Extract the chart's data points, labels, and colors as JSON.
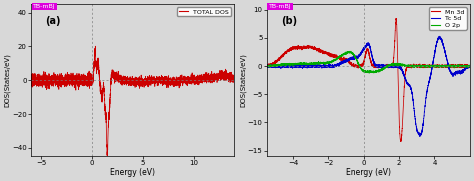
{
  "panel_a": {
    "label": "(a)",
    "tag": "TB-mBJ",
    "tag_color": "#dd00dd",
    "legend_label": "TOTAL DOS",
    "legend_color": "#cc0000",
    "xlabel": "Energy (eV)",
    "ylabel": "DOS(States/eV)",
    "xlim": [
      -6,
      14
    ],
    "ylim": [
      -45,
      45
    ],
    "yticks": [
      -40,
      -20,
      0,
      20,
      40
    ],
    "xticks": [
      -5,
      0,
      5,
      10
    ]
  },
  "panel_b": {
    "label": "(b)",
    "tag": "TB-mBJ",
    "tag_color": "#dd00dd",
    "legend": [
      {
        "label": "Mn 3d",
        "color": "#cc0000"
      },
      {
        "label": "Tc 5d",
        "color": "#0000cc"
      },
      {
        "label": "O 2p",
        "color": "#00aa00"
      }
    ],
    "xlabel": "Energy (eV)",
    "ylabel": "DOS(States/eV)",
    "xlim": [
      -5.5,
      6
    ],
    "ylim": [
      -16,
      11
    ],
    "yticks": [
      -15,
      -10,
      -5,
      0,
      5,
      10
    ],
    "xticks": [
      -4,
      -2,
      0,
      2,
      4
    ]
  },
  "background_color": "#d8d8d8"
}
